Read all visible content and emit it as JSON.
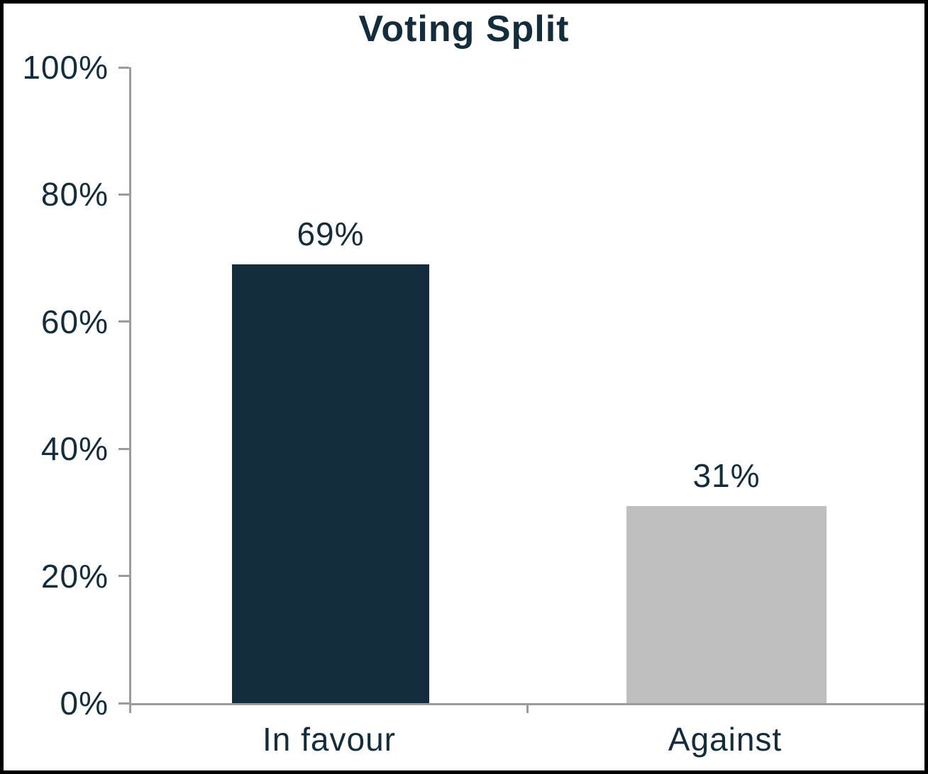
{
  "chart_data": {
    "type": "bar",
    "title": "Voting Split",
    "categories": [
      "In favour",
      "Against"
    ],
    "values": [
      69,
      31
    ],
    "value_labels": [
      "69%",
      "31%"
    ],
    "bar_colors": [
      "#132d3c",
      "#bfbfbf"
    ],
    "xlabel": "",
    "ylabel": "",
    "ylim": [
      0,
      100
    ],
    "ytick_values": [
      0,
      20,
      40,
      60,
      80,
      100
    ],
    "ytick_labels": [
      "0%",
      "20%",
      "40%",
      "60%",
      "80%",
      "100%"
    ],
    "grid": false,
    "legend": false
  },
  "colors": {
    "text": "#132d3c",
    "axis": "#9b9b9b",
    "page_border": "#000000",
    "background": "#ffffff"
  }
}
